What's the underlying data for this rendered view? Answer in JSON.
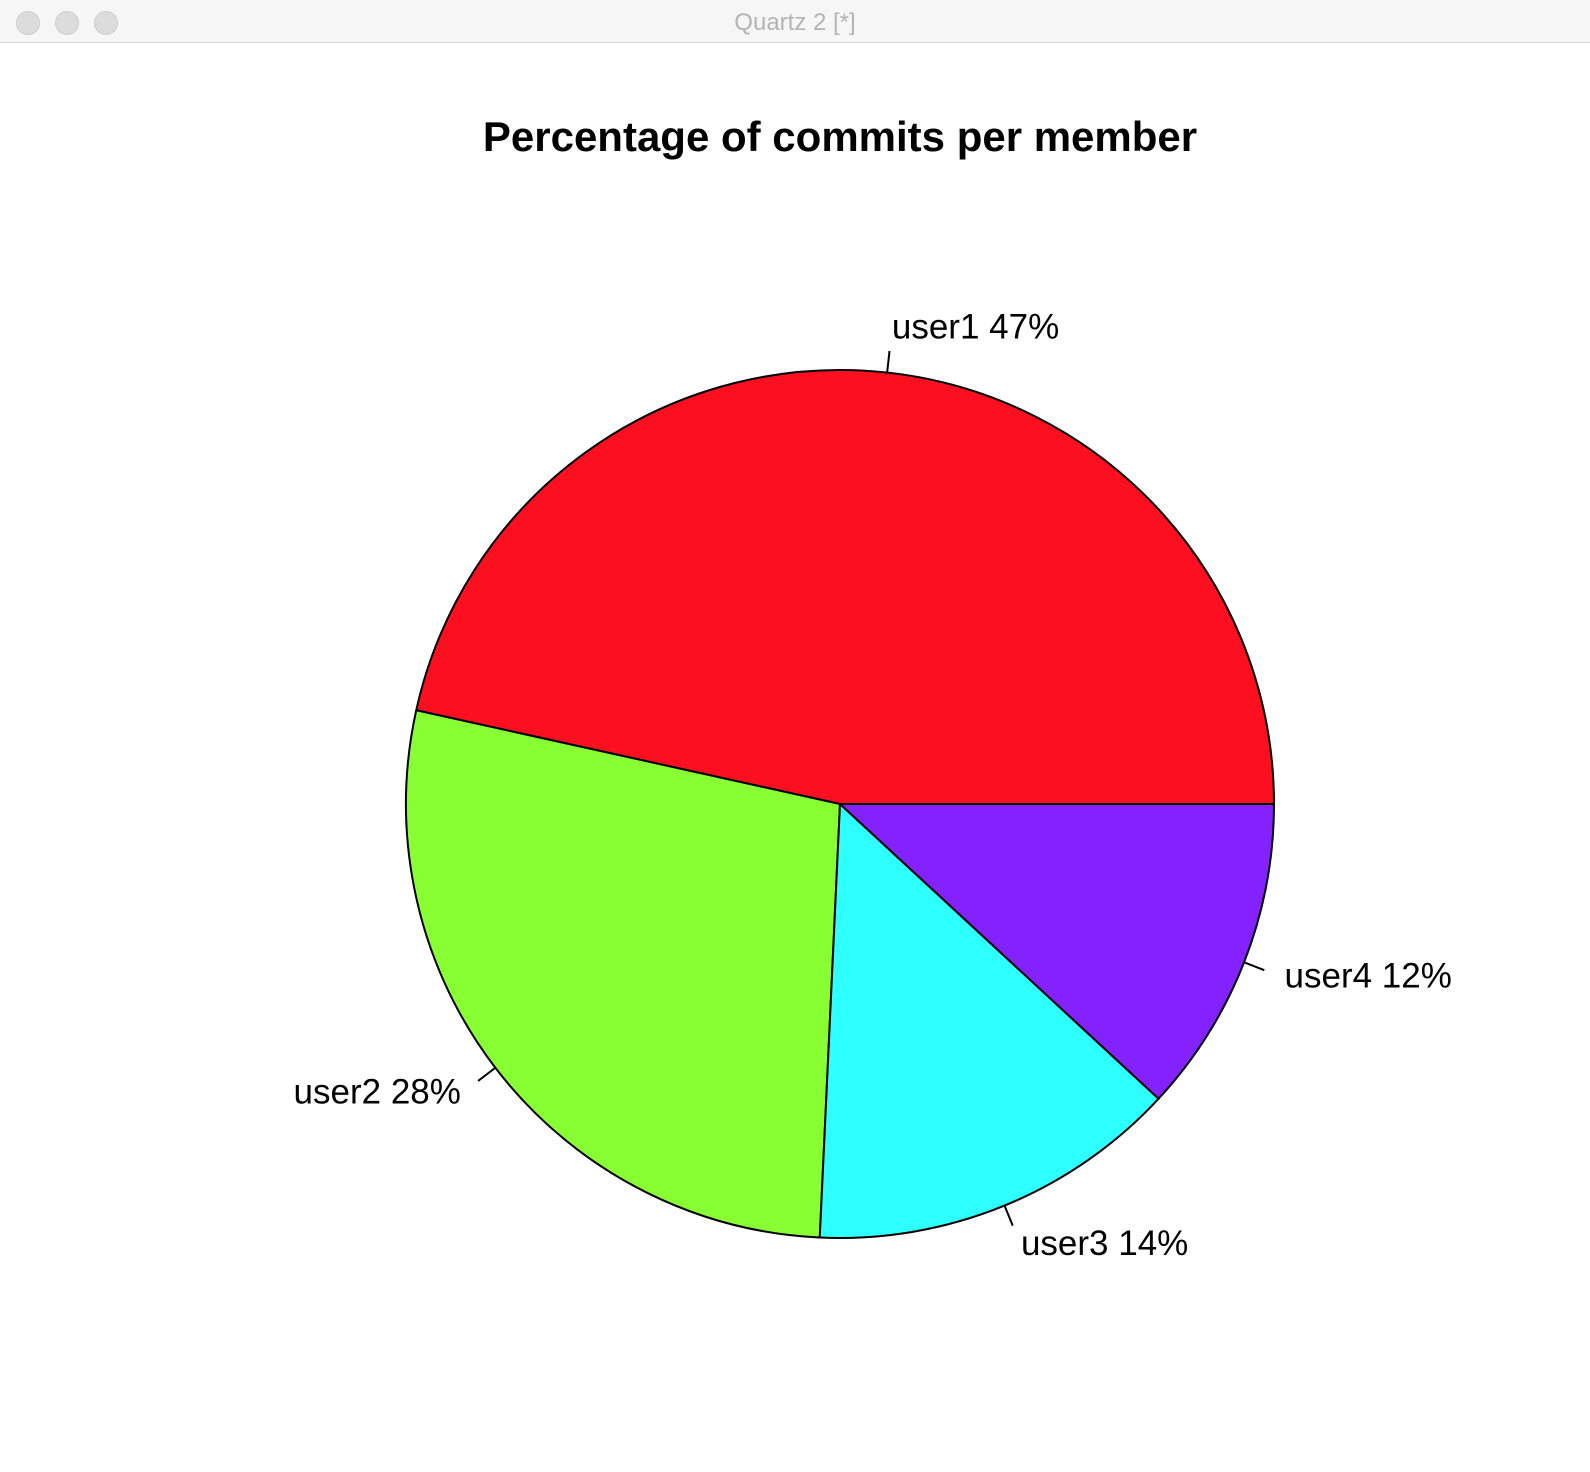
{
  "window": {
    "title": "Quartz 2 [*]"
  },
  "chart_data": {
    "type": "pie",
    "title": "Percentage of commits per member",
    "categories": [
      "user1",
      "user2",
      "user3",
      "user4"
    ],
    "values": [
      47,
      28,
      14,
      12
    ],
    "labels": [
      "user1 47%",
      "user2 28%",
      "user3 14%",
      "user4 12%"
    ],
    "colors": [
      "#fc101f",
      "#88ff33",
      "#2effff",
      "#8422ff"
    ],
    "start_angle_deg": 0,
    "direction": "counterclockwise",
    "legend": "none"
  }
}
